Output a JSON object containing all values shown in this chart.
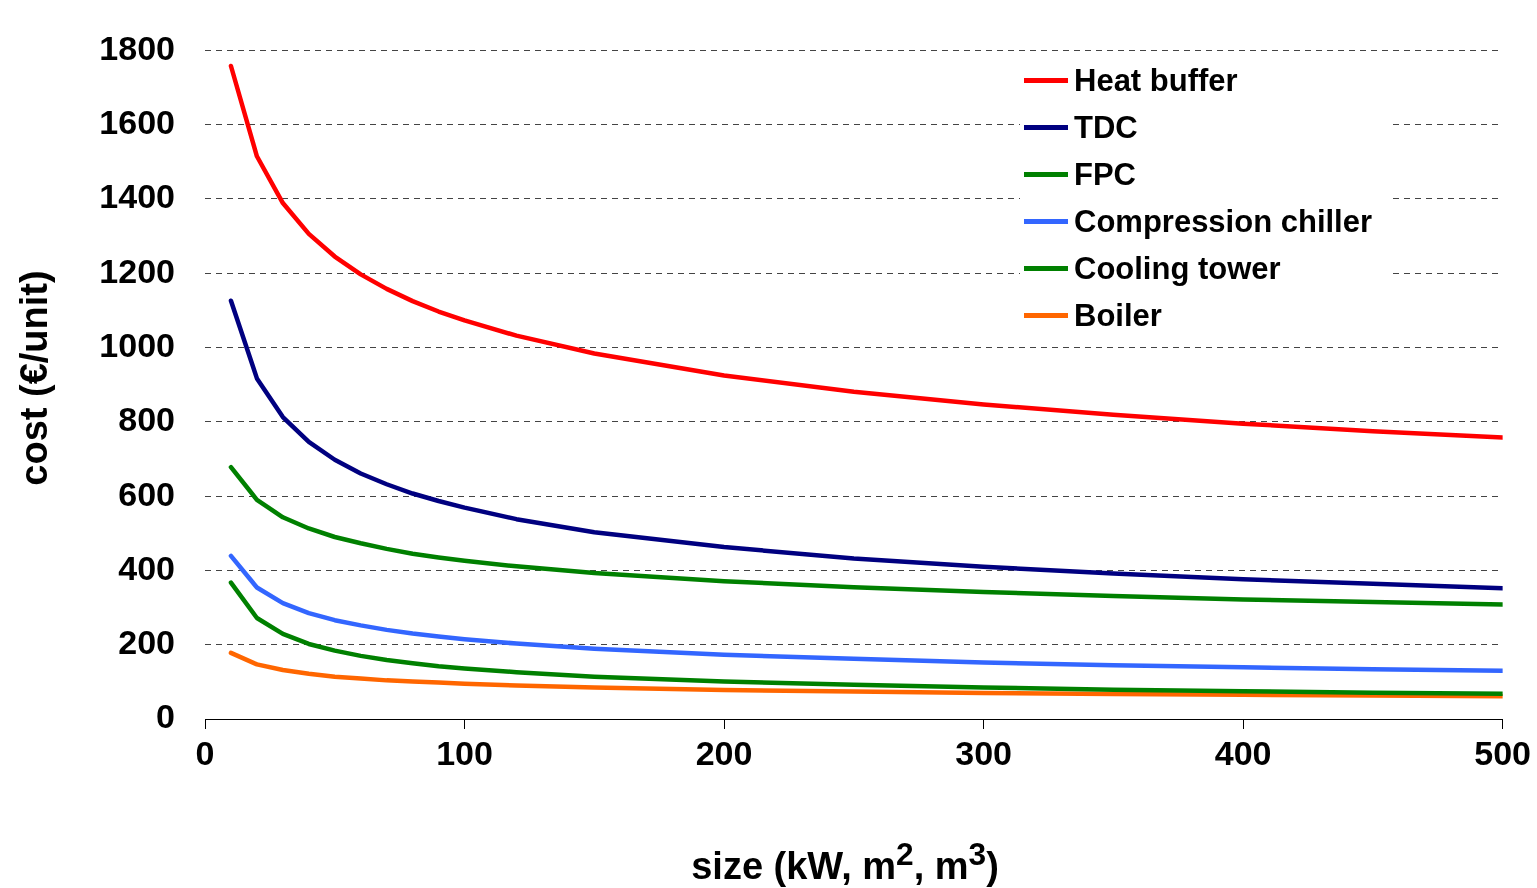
{
  "chart_data": {
    "type": "line",
    "xlabel": "size (kW, m$^{2}$, m$^{3}$)",
    "ylabel": "cost (€/unit)",
    "x": [
      10,
      20,
      30,
      40,
      50,
      60,
      70,
      80,
      90,
      100,
      120,
      150,
      200,
      250,
      300,
      350,
      400,
      450,
      500
    ],
    "xlim": [
      0,
      500
    ],
    "xticks": [
      0,
      100,
      200,
      300,
      400,
      500
    ],
    "ylim": [
      0,
      1800
    ],
    "yticks": [
      0,
      200,
      400,
      600,
      800,
      1000,
      1200,
      1400,
      1600,
      1800
    ],
    "grid": "y",
    "legend": "top right",
    "marker": "none",
    "line_style": "solid",
    "series": [
      {
        "name": "Heat buffer",
        "color": "#ff0000",
        "values": [
          1758,
          1515,
          1389,
          1306,
          1245,
          1197,
          1158,
          1125,
          1097,
          1073,
          1032,
          984,
          925,
          881,
          847,
          819,
          795,
          775,
          758
        ]
      },
      {
        "name": "TDC",
        "color": "#000080",
        "values": [
          1126,
          917,
          813,
          746,
          698,
          661,
          632,
          607,
          587,
          569,
          538,
          503,
          463,
          432,
          410,
          392,
          376,
          364,
          352
        ]
      },
      {
        "name": "FPC",
        "color": "#008000",
        "values": [
          678,
          590,
          543,
          513,
          490,
          473,
          458,
          445,
          435,
          426,
          411,
          393,
          371,
          355,
          342,
          331,
          322,
          315,
          308
        ]
      },
      {
        "name": "Compression chiller",
        "color": "#3366ff",
        "values": [
          439,
          354,
          312,
          285,
          266,
          252,
          240,
          230,
          222,
          215,
          203,
          189,
          173,
          162,
          152,
          145,
          139,
          134,
          130
        ]
      },
      {
        "name": "Cooling tower",
        "color": "#008000",
        "values": [
          367,
          272,
          229,
          202,
          184,
          170,
          159,
          150,
          142,
          136,
          126,
          114,
          101,
          92,
          85,
          79,
          75,
          71,
          68
        ]
      },
      {
        "name": "Boiler",
        "color": "#ff6600",
        "values": [
          178,
          147,
          132,
          122,
          114,
          109,
          104,
          101,
          98,
          95,
          90,
          85,
          78,
          74,
          70,
          67,
          65,
          63,
          61
        ]
      }
    ]
  }
}
